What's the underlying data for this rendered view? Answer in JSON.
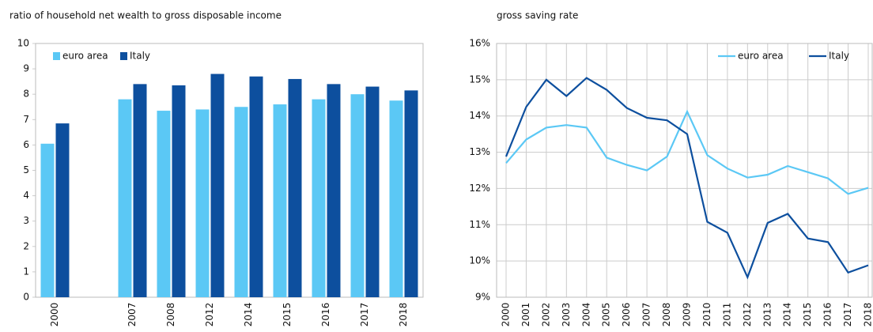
{
  "chart_data": [
    {
      "type": "bar",
      "title": "ratio of household net wealth to gross disposable income",
      "categories": [
        "2000",
        null,
        "2007",
        "2008",
        "2012",
        "2014",
        "2015",
        "2016",
        "2017",
        "2018"
      ],
      "series": [
        {
          "name": "euro area",
          "color": "#5bc8f5",
          "values": [
            6.05,
            null,
            7.8,
            7.35,
            7.4,
            7.5,
            7.6,
            7.8,
            8.0,
            7.75
          ]
        },
        {
          "name": "Italy",
          "color": "#0d4f9e",
          "values": [
            6.85,
            null,
            8.4,
            8.35,
            8.8,
            8.7,
            8.6,
            8.4,
            8.3,
            8.15
          ]
        }
      ],
      "ylim": [
        0,
        10
      ],
      "yticks": [
        0,
        1,
        2,
        3,
        4,
        5,
        6,
        7,
        8,
        9,
        10
      ],
      "grid": false,
      "legend": "top-left"
    },
    {
      "type": "line",
      "title": "gross saving rate",
      "categories": [
        "2000",
        "2001",
        "2002",
        "2003",
        "2004",
        "2005",
        "2006",
        "2007",
        "2008",
        "2009",
        "2010",
        "2011",
        "2012",
        "2013",
        "2014",
        "2015",
        "2016",
        "2017",
        "2018"
      ],
      "series": [
        {
          "name": "euro area",
          "color": "#5bc8f5",
          "values": [
            12.7,
            13.35,
            13.68,
            13.75,
            13.68,
            12.85,
            12.65,
            12.5,
            12.88,
            14.12,
            12.92,
            12.55,
            12.3,
            12.38,
            12.62,
            12.45,
            12.28,
            11.85,
            12.02
          ]
        },
        {
          "name": "Italy",
          "color": "#0d4f9e",
          "values": [
            12.88,
            14.25,
            15.0,
            14.55,
            15.05,
            14.72,
            14.22,
            13.95,
            13.88,
            13.5,
            11.08,
            10.78,
            9.55,
            11.05,
            11.3,
            10.62,
            10.52,
            9.68,
            9.88
          ]
        }
      ],
      "ylim": [
        9,
        16
      ],
      "yticks": [
        {
          "value": 9,
          "label": "9%"
        },
        {
          "value": 10,
          "label": "10%"
        },
        {
          "value": 11,
          "label": "11%"
        },
        {
          "value": 12,
          "label": "12%"
        },
        {
          "value": 13,
          "label": "13%"
        },
        {
          "value": 14,
          "label": "14%"
        },
        {
          "value": 15,
          "label": "15%"
        },
        {
          "value": 16,
          "label": "16%"
        }
      ],
      "grid": true,
      "legend": "top-right"
    }
  ]
}
